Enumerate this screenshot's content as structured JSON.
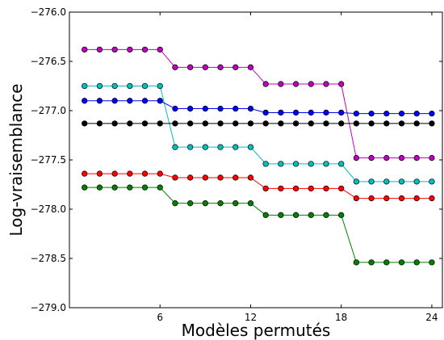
{
  "chart_data": {
    "type": "line",
    "title": "",
    "xlabel": "Modèles permutés",
    "ylabel": "Log-vraisemblance",
    "xlim": [
      0,
      24.7
    ],
    "ylim": [
      -279.0,
      -276.0
    ],
    "xticks": [
      6,
      12,
      18,
      24
    ],
    "xtick_labels": [
      "6",
      "12",
      "18",
      "24"
    ],
    "yticks": [
      -279.0,
      -278.5,
      -278.0,
      -277.5,
      -277.0,
      -276.5,
      -276.0
    ],
    "ytick_labels": [
      "−279.0",
      "−278.5",
      "−278.0",
      "−277.5",
      "−277.0",
      "−276.5",
      "−276.0"
    ],
    "grid": false,
    "x": [
      1,
      2,
      3,
      4,
      5,
      6,
      7,
      8,
      9,
      10,
      11,
      12,
      13,
      14,
      15,
      16,
      17,
      18,
      19,
      20,
      21,
      22,
      23,
      24
    ],
    "series": [
      {
        "color": "#bf00bf",
        "values": [
          -276.38,
          -276.38,
          -276.38,
          -276.38,
          -276.38,
          -276.38,
          -276.56,
          -276.56,
          -276.56,
          -276.56,
          -276.56,
          -276.56,
          -276.73,
          -276.73,
          -276.73,
          -276.73,
          -276.73,
          -276.73,
          -277.48,
          -277.48,
          -277.48,
          -277.48,
          -277.48,
          -277.48
        ]
      },
      {
        "color": "#00bfbf",
        "values": [
          -276.75,
          -276.75,
          -276.75,
          -276.75,
          -276.75,
          -276.75,
          -277.37,
          -277.37,
          -277.37,
          -277.37,
          -277.37,
          -277.37,
          -277.54,
          -277.54,
          -277.54,
          -277.54,
          -277.54,
          -277.54,
          -277.72,
          -277.72,
          -277.72,
          -277.72,
          -277.72,
          -277.72
        ]
      },
      {
        "color": "#0000ff",
        "values": [
          -276.9,
          -276.9,
          -276.9,
          -276.9,
          -276.9,
          -276.9,
          -276.98,
          -276.98,
          -276.98,
          -276.98,
          -276.98,
          -276.98,
          -277.02,
          -277.02,
          -277.02,
          -277.02,
          -277.02,
          -277.02,
          -277.03,
          -277.03,
          -277.03,
          -277.03,
          -277.03,
          -277.03
        ]
      },
      {
        "color": "#000000",
        "values": [
          -277.13,
          -277.13,
          -277.13,
          -277.13,
          -277.13,
          -277.13,
          -277.13,
          -277.13,
          -277.13,
          -277.13,
          -277.13,
          -277.13,
          -277.13,
          -277.13,
          -277.13,
          -277.13,
          -277.13,
          -277.13,
          -277.13,
          -277.13,
          -277.13,
          -277.13,
          -277.13,
          -277.13
        ]
      },
      {
        "color": "#ff0000",
        "values": [
          -277.64,
          -277.64,
          -277.64,
          -277.64,
          -277.64,
          -277.64,
          -277.68,
          -277.68,
          -277.68,
          -277.68,
          -277.68,
          -277.68,
          -277.79,
          -277.79,
          -277.79,
          -277.79,
          -277.79,
          -277.79,
          -277.89,
          -277.89,
          -277.89,
          -277.89,
          -277.89,
          -277.89
        ]
      },
      {
        "color": "#008000",
        "values": [
          -277.78,
          -277.78,
          -277.78,
          -277.78,
          -277.78,
          -277.78,
          -277.94,
          -277.94,
          -277.94,
          -277.94,
          -277.94,
          -277.94,
          -278.06,
          -278.06,
          -278.06,
          -278.06,
          -278.06,
          -278.06,
          -278.54,
          -278.54,
          -278.54,
          -278.54,
          -278.54,
          -278.54
        ]
      }
    ]
  }
}
